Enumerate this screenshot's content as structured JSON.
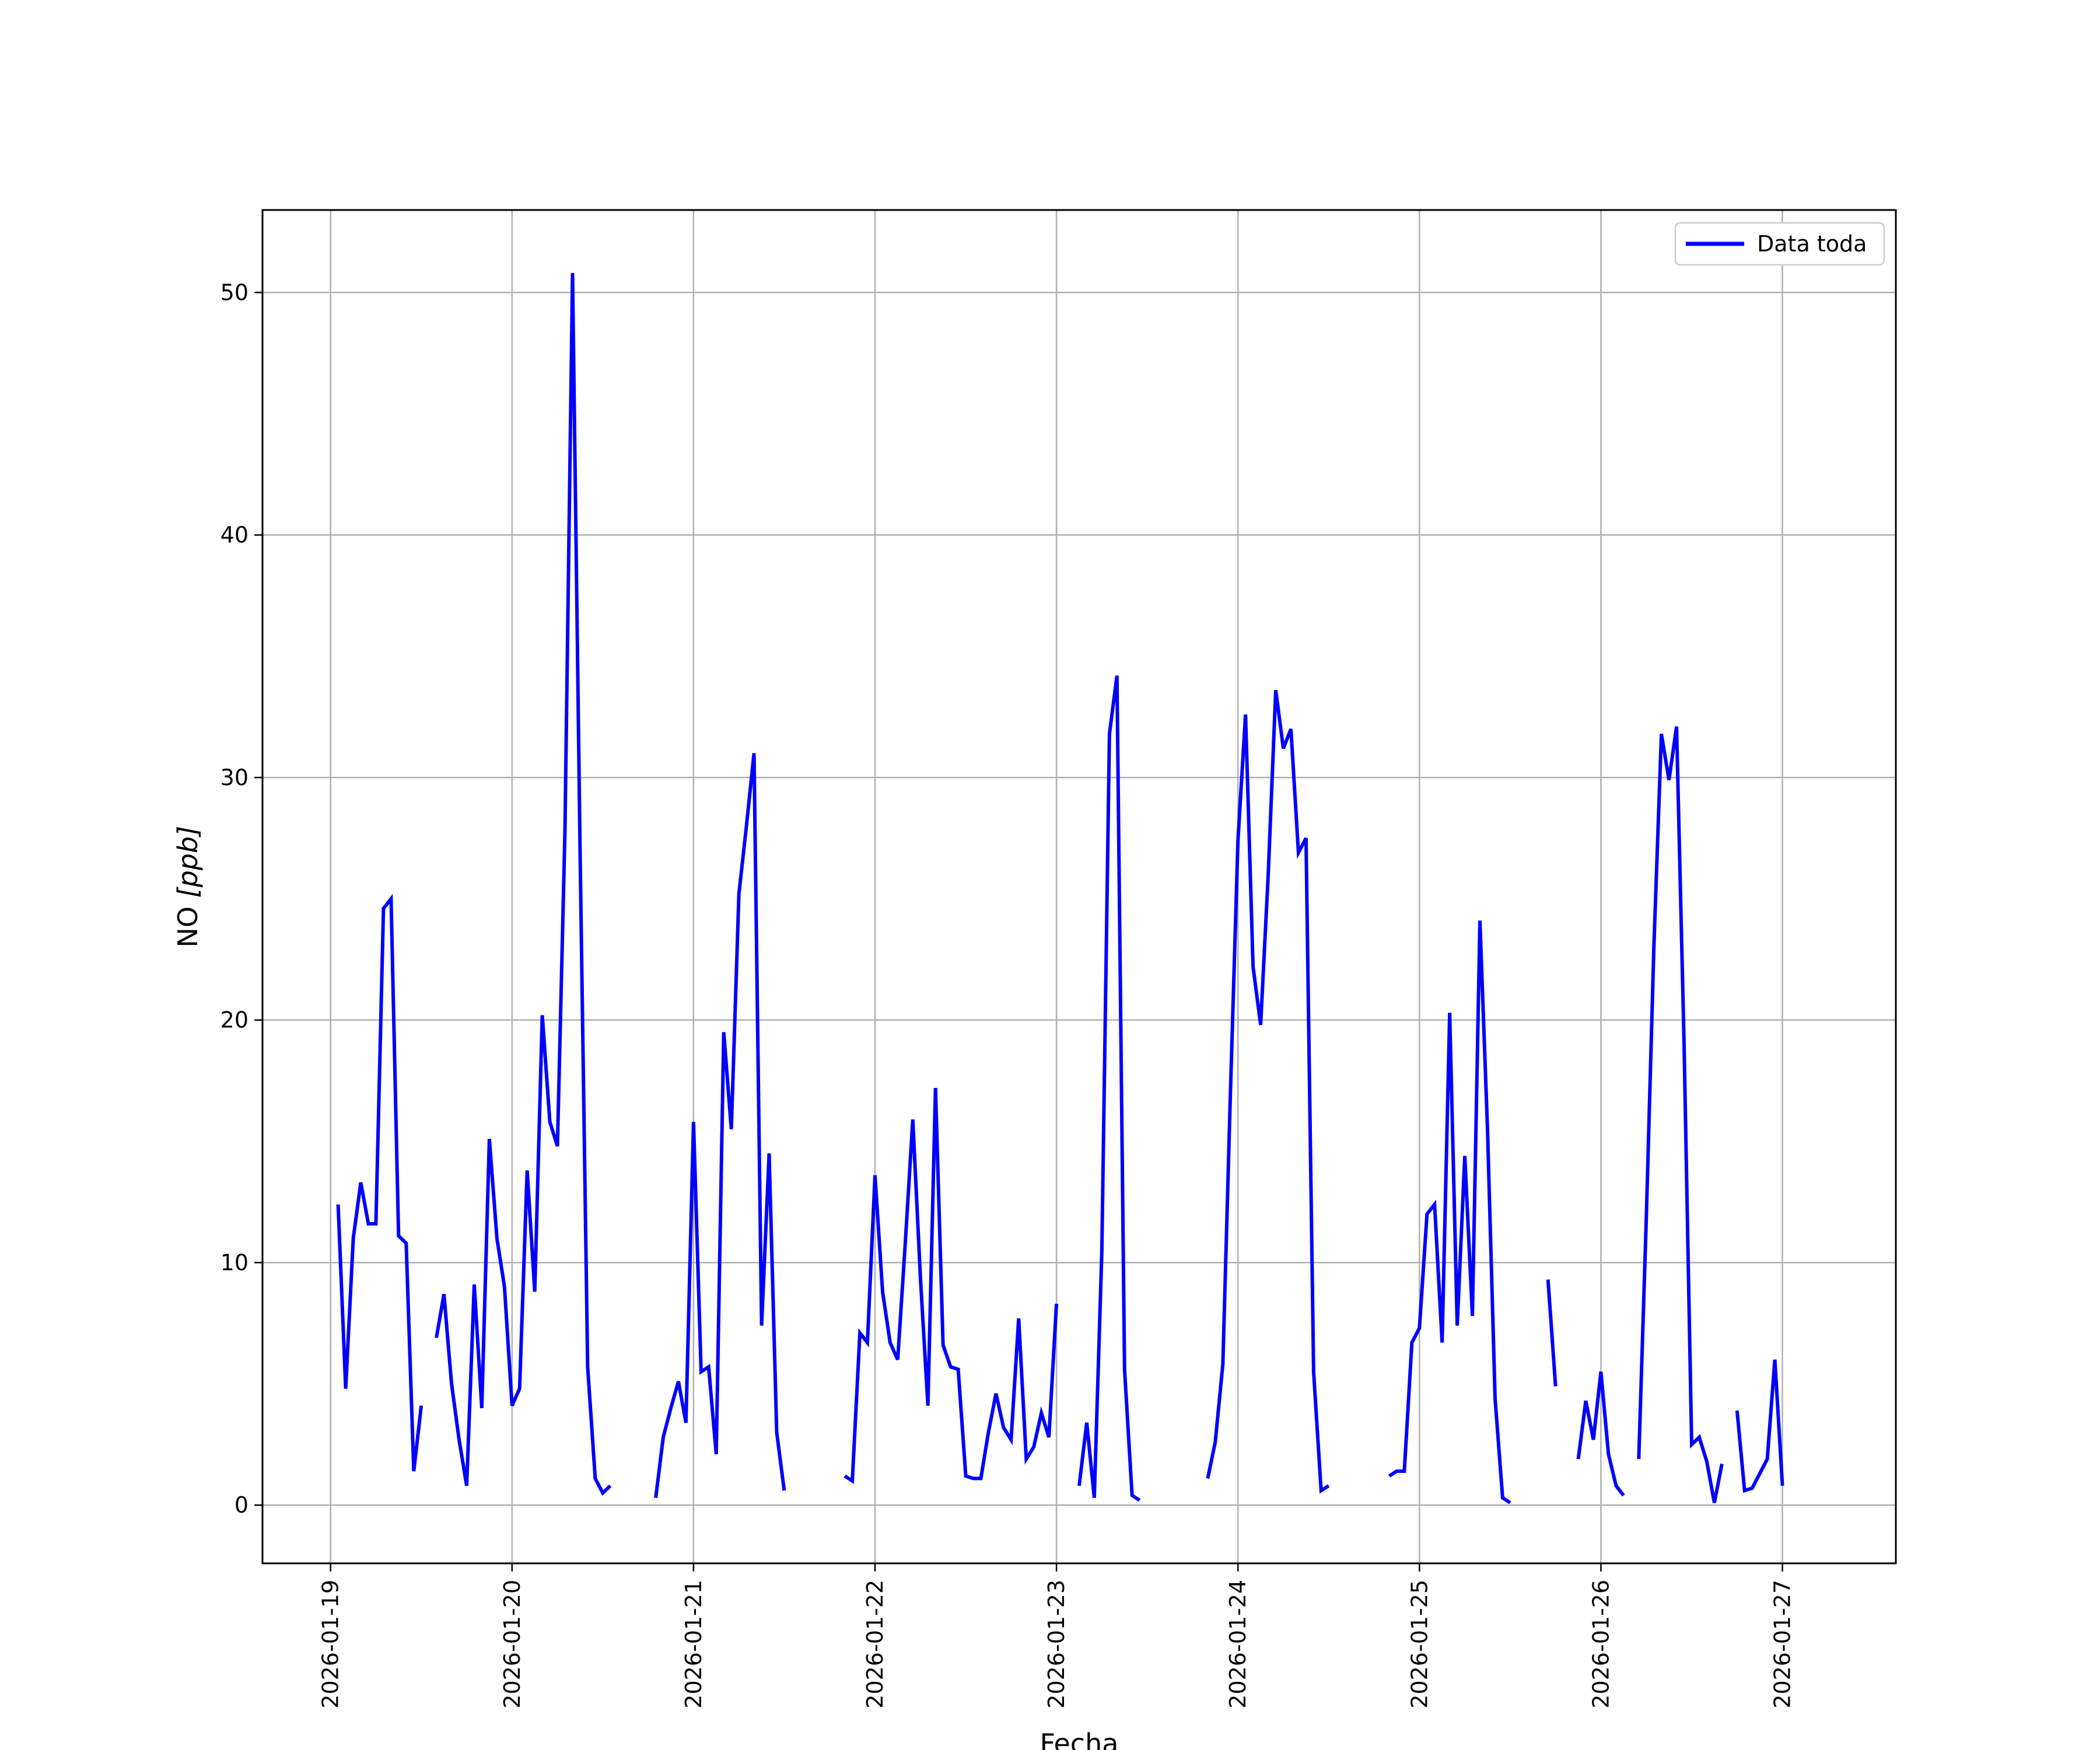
{
  "chart_data": {
    "type": "line",
    "title": "",
    "xlabel": "Fecha",
    "ylabel_main": "NO ",
    "ylabel_unit": "[ppb]",
    "grid": true,
    "legend_position": "top-right",
    "x_ticks": [
      "2026-01-19",
      "2026-01-20",
      "2026-01-21",
      "2026-01-22",
      "2026-01-23",
      "2026-01-24",
      "2026-01-25",
      "2026-01-26",
      "2026-01-27"
    ],
    "y_ticks": [
      0,
      10,
      20,
      30,
      40,
      50
    ],
    "xlim": [
      "2026-01-18 15:00",
      "2026-01-27 15:00"
    ],
    "ylim": [
      -2.4,
      53.4
    ],
    "series": [
      {
        "name": "Data toda",
        "color": "#0000ff",
        "segments": [
          [
            [
              "2026-01-19 01:00",
              12.4
            ],
            [
              "2026-01-19 02:00",
              4.8
            ],
            [
              "2026-01-19 03:00",
              11.0
            ],
            [
              "2026-01-19 04:00",
              13.3
            ],
            [
              "2026-01-19 05:00",
              11.6
            ],
            [
              "2026-01-19 06:00",
              11.6
            ],
            [
              "2026-01-19 07:00",
              24.6
            ],
            [
              "2026-01-19 08:00",
              25.0
            ],
            [
              "2026-01-19 09:00",
              11.1
            ],
            [
              "2026-01-19 10:00",
              10.8
            ],
            [
              "2026-01-19 11:00",
              1.4
            ],
            [
              "2026-01-19 12:00",
              4.1
            ]
          ],
          [
            [
              "2026-01-19 14:00",
              6.9
            ],
            [
              "2026-01-19 15:00",
              8.7
            ],
            [
              "2026-01-19 16:00",
              5.0
            ],
            [
              "2026-01-19 17:00",
              2.7
            ],
            [
              "2026-01-19 18:00",
              0.8
            ],
            [
              "2026-01-19 19:00",
              9.1
            ],
            [
              "2026-01-19 20:00",
              4.0
            ],
            [
              "2026-01-19 21:00",
              15.1
            ],
            [
              "2026-01-19 22:00",
              11.0
            ],
            [
              "2026-01-19 23:00",
              9.0
            ],
            [
              "2026-01-20 00:00",
              4.1
            ],
            [
              "2026-01-20 01:00",
              4.8
            ],
            [
              "2026-01-20 02:00",
              13.8
            ],
            [
              "2026-01-20 03:00",
              8.8
            ],
            [
              "2026-01-20 04:00",
              20.2
            ],
            [
              "2026-01-20 05:00",
              15.8
            ],
            [
              "2026-01-20 06:00",
              14.8
            ],
            [
              "2026-01-20 07:00",
              27.8
            ],
            [
              "2026-01-20 08:00",
              50.8
            ],
            [
              "2026-01-20 09:00",
              27.0
            ],
            [
              "2026-01-20 10:00",
              5.7
            ],
            [
              "2026-01-20 11:00",
              1.1
            ],
            [
              "2026-01-20 12:00",
              0.5
            ],
            [
              "2026-01-20 13:00",
              0.8
            ]
          ],
          [
            [
              "2026-01-20 19:00",
              0.3
            ],
            [
              "2026-01-20 20:00",
              2.8
            ],
            [
              "2026-01-20 21:00",
              4.0
            ],
            [
              "2026-01-20 22:00",
              5.1
            ],
            [
              "2026-01-20 23:00",
              3.4
            ],
            [
              "2026-01-21 00:00",
              15.8
            ],
            [
              "2026-01-21 01:00",
              5.5
            ],
            [
              "2026-01-21 02:00",
              5.7
            ],
            [
              "2026-01-21 03:00",
              2.1
            ],
            [
              "2026-01-21 04:00",
              19.5
            ],
            [
              "2026-01-21 05:00",
              15.5
            ],
            [
              "2026-01-21 06:00",
              25.2
            ],
            [
              "2026-01-21 07:00",
              28.0
            ],
            [
              "2026-01-21 08:00",
              31.0
            ],
            [
              "2026-01-21 09:00",
              7.4
            ],
            [
              "2026-01-21 10:00",
              14.5
            ],
            [
              "2026-01-21 11:00",
              3.0
            ],
            [
              "2026-01-21 12:00",
              0.6
            ]
          ],
          [
            [
              "2026-01-21 20:00",
              1.2
            ],
            [
              "2026-01-21 21:00",
              1.0
            ],
            [
              "2026-01-21 22:00",
              7.1
            ],
            [
              "2026-01-21 23:00",
              6.7
            ],
            [
              "2026-01-22 00:00",
              13.6
            ],
            [
              "2026-01-22 01:00",
              8.8
            ],
            [
              "2026-01-22 02:00",
              6.7
            ],
            [
              "2026-01-22 03:00",
              6.0
            ],
            [
              "2026-01-22 04:00",
              10.8
            ],
            [
              "2026-01-22 05:00",
              15.9
            ],
            [
              "2026-01-22 06:00",
              9.4
            ],
            [
              "2026-01-22 07:00",
              4.1
            ],
            [
              "2026-01-22 08:00",
              17.2
            ],
            [
              "2026-01-22 09:00",
              6.6
            ],
            [
              "2026-01-22 10:00",
              5.7
            ],
            [
              "2026-01-22 11:00",
              5.6
            ],
            [
              "2026-01-22 12:00",
              1.2
            ],
            [
              "2026-01-22 13:00",
              1.1
            ],
            [
              "2026-01-22 14:00",
              1.1
            ],
            [
              "2026-01-22 15:00",
              3.0
            ],
            [
              "2026-01-22 16:00",
              4.6
            ],
            [
              "2026-01-22 17:00",
              3.2
            ],
            [
              "2026-01-22 18:00",
              2.7
            ],
            [
              "2026-01-22 19:00",
              7.7
            ],
            [
              "2026-01-22 20:00",
              1.9
            ],
            [
              "2026-01-22 21:00",
              2.4
            ],
            [
              "2026-01-22 22:00",
              3.8
            ],
            [
              "2026-01-22 23:00",
              2.8
            ],
            [
              "2026-01-23 00:00",
              8.3
            ]
          ],
          [
            [
              "2026-01-23 03:00",
              0.8
            ],
            [
              "2026-01-23 04:00",
              3.4
            ],
            [
              "2026-01-23 05:00",
              0.3
            ],
            [
              "2026-01-23 06:00",
              10.5
            ],
            [
              "2026-01-23 07:00",
              31.8
            ],
            [
              "2026-01-23 08:00",
              34.2
            ],
            [
              "2026-01-23 09:00",
              5.6
            ],
            [
              "2026-01-23 10:00",
              0.4
            ],
            [
              "2026-01-23 11:00",
              0.2
            ]
          ],
          [
            [
              "2026-01-23 20:00",
              1.1
            ],
            [
              "2026-01-23 21:00",
              2.6
            ],
            [
              "2026-01-23 22:00",
              5.8
            ],
            [
              "2026-01-23 23:00",
              17.0
            ],
            [
              "2026-01-24 00:00",
              27.4
            ],
            [
              "2026-01-24 01:00",
              32.6
            ],
            [
              "2026-01-24 02:00",
              22.2
            ],
            [
              "2026-01-24 03:00",
              19.8
            ],
            [
              "2026-01-24 04:00",
              26.0
            ],
            [
              "2026-01-24 05:00",
              33.6
            ],
            [
              "2026-01-24 06:00",
              31.2
            ],
            [
              "2026-01-24 07:00",
              32.0
            ],
            [
              "2026-01-24 08:00",
              26.9
            ],
            [
              "2026-01-24 09:00",
              27.5
            ],
            [
              "2026-01-24 10:00",
              5.5
            ],
            [
              "2026-01-24 11:00",
              0.6
            ],
            [
              "2026-01-24 12:00",
              0.8
            ]
          ],
          [
            [
              "2026-01-24 20:00",
              1.2
            ],
            [
              "2026-01-24 21:00",
              1.4
            ],
            [
              "2026-01-24 22:00",
              1.4
            ],
            [
              "2026-01-24 23:00",
              6.7
            ],
            [
              "2026-01-25 00:00",
              7.3
            ],
            [
              "2026-01-25 01:00",
              12.0
            ],
            [
              "2026-01-25 02:00",
              12.4
            ],
            [
              "2026-01-25 03:00",
              6.7
            ],
            [
              "2026-01-25 04:00",
              20.3
            ],
            [
              "2026-01-25 05:00",
              7.4
            ],
            [
              "2026-01-25 06:00",
              14.4
            ],
            [
              "2026-01-25 07:00",
              7.8
            ],
            [
              "2026-01-25 08:00",
              24.1
            ],
            [
              "2026-01-25 09:00",
              15.5
            ],
            [
              "2026-01-25 10:00",
              4.4
            ],
            [
              "2026-01-25 11:00",
              0.3
            ],
            [
              "2026-01-25 12:00",
              0.1
            ]
          ],
          [
            [
              "2026-01-25 17:00",
              9.3
            ],
            [
              "2026-01-25 18:00",
              4.9
            ]
          ],
          [
            [
              "2026-01-25 21:00",
              1.9
            ],
            [
              "2026-01-25 22:00",
              4.3
            ],
            [
              "2026-01-25 23:00",
              2.7
            ],
            [
              "2026-01-26 00:00",
              5.5
            ],
            [
              "2026-01-26 01:00",
              2.1
            ],
            [
              "2026-01-26 02:00",
              0.8
            ],
            [
              "2026-01-26 03:00",
              0.4
            ]
          ],
          [
            [
              "2026-01-26 05:00",
              1.9
            ],
            [
              "2026-01-26 06:00",
              11.8
            ],
            [
              "2026-01-26 07:00",
              23.0
            ],
            [
              "2026-01-26 08:00",
              31.8
            ],
            [
              "2026-01-26 09:00",
              29.9
            ],
            [
              "2026-01-26 10:00",
              32.1
            ],
            [
              "2026-01-26 11:00",
              19.0
            ],
            [
              "2026-01-26 12:00",
              2.5
            ],
            [
              "2026-01-26 13:00",
              2.8
            ],
            [
              "2026-01-26 14:00",
              1.8
            ],
            [
              "2026-01-26 15:00",
              0.1
            ],
            [
              "2026-01-26 16:00",
              1.7
            ]
          ],
          [
            [
              "2026-01-26 18:00",
              3.9
            ],
            [
              "2026-01-26 19:00",
              0.6
            ],
            [
              "2026-01-26 20:00",
              0.7
            ],
            [
              "2026-01-26 21:00",
              1.3
            ],
            [
              "2026-01-26 22:00",
              1.9
            ],
            [
              "2026-01-26 23:00",
              6.0
            ],
            [
              "2026-01-27 00:00",
              0.8
            ]
          ]
        ]
      }
    ]
  }
}
